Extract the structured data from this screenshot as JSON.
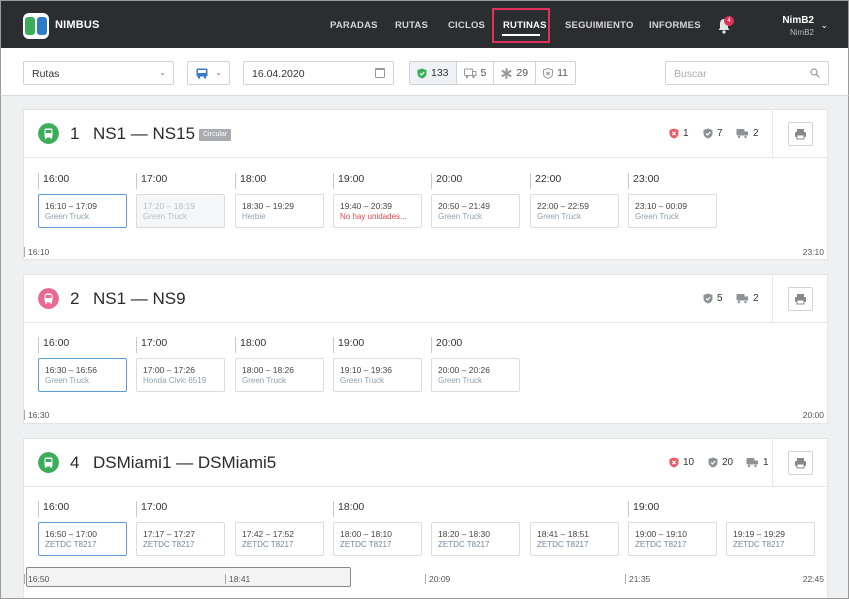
{
  "app": {
    "brand": "NIMBUS"
  },
  "nav": {
    "items": [
      "PARADAS",
      "RUTAS",
      "CICLOS",
      "RUTINAS",
      "SEGUIMIENTO",
      "INFORMES"
    ],
    "active": "RUTINAS",
    "notifications": "4"
  },
  "user": {
    "name": "NimB2",
    "sub": "NimB2"
  },
  "filters": {
    "type_select": "Rutas",
    "date": "16.04.2020",
    "search_placeholder": "Buscar"
  },
  "stats": {
    "ok": "133",
    "trucks": "5",
    "star": "29",
    "error": "11"
  },
  "routes": [
    {
      "number": "1",
      "name": "NS1 — NS15",
      "badge": "Circular",
      "color": "#3cae5b",
      "stats": {
        "error": "1",
        "ok": "7",
        "vehicles": "2"
      },
      "hours": [
        "16:00",
        "17:00",
        "18:00",
        "19:00",
        "20:00",
        "22:00",
        "23:00"
      ],
      "slots": [
        {
          "time": "16:10 – 17:09",
          "vehicle": "Green Truck"
        },
        {
          "time": "17:20 – 18:19",
          "vehicle": "Green Truck"
        },
        {
          "time": "18:30 – 19:29",
          "vehicle": "Herbie"
        },
        {
          "time": "19:40 – 20:39",
          "vehicle": "No hay unidades..."
        },
        {
          "time": "20:50 – 21:49",
          "vehicle": "Green Truck"
        },
        {
          "time": "22:00 – 22:59",
          "vehicle": "Green Truck"
        },
        {
          "time": "23:10 – 00:09",
          "vehicle": "Green Truck"
        }
      ],
      "timeline": {
        "start": "16:10",
        "end": "23:10"
      }
    },
    {
      "number": "2",
      "name": "NS1 — NS9",
      "color": "#e86a92",
      "stats": {
        "ok": "5",
        "vehicles": "2"
      },
      "hours": [
        "16:00",
        "17:00",
        "18:00",
        "19:00",
        "20:00"
      ],
      "slots": [
        {
          "time": "16:30 – 16:56",
          "vehicle": "Green Truck"
        },
        {
          "time": "17:00 – 17:26",
          "vehicle": "Honda Civic 6519"
        },
        {
          "time": "18:00 – 18:26",
          "vehicle": "Green Truck"
        },
        {
          "time": "19:10 – 19:36",
          "vehicle": "Green Truck"
        },
        {
          "time": "20:00 – 20:26",
          "vehicle": "Green Truck"
        }
      ],
      "timeline": {
        "start": "16:30",
        "end": "20:00"
      }
    },
    {
      "number": "4",
      "name": "DSMiami1 — DSMiami5",
      "color": "#3cae5b",
      "stats": {
        "error": "10",
        "ok": "20",
        "vehicles": "1"
      },
      "hours": [
        "16:00",
        "17:00",
        "18:00",
        "19:00"
      ],
      "slots": [
        {
          "time": "16:50 – 17:00",
          "vehicle": "ZETDC T8217"
        },
        {
          "time": "17:17 – 17:27",
          "vehicle": "ZETDC T8217"
        },
        {
          "time": "17:42 – 17:52",
          "vehicle": "ZETDC T8217"
        },
        {
          "time": "18:00 – 18:10",
          "vehicle": "ZETDC T8217"
        },
        {
          "time": "18:20 – 18:30",
          "vehicle": "ZETDC T8217"
        },
        {
          "time": "18:41 – 18:51",
          "vehicle": "ZETDC T8217"
        },
        {
          "time": "19:00 – 19:10",
          "vehicle": "ZETDC T8217"
        },
        {
          "time": "19:19 – 19:29",
          "vehicle": "ZETDC T8217"
        }
      ],
      "timeline": {
        "start": "16:50",
        "marks": [
          "18:41",
          "20:09",
          "21:35"
        ],
        "end": "22:45"
      }
    }
  ]
}
